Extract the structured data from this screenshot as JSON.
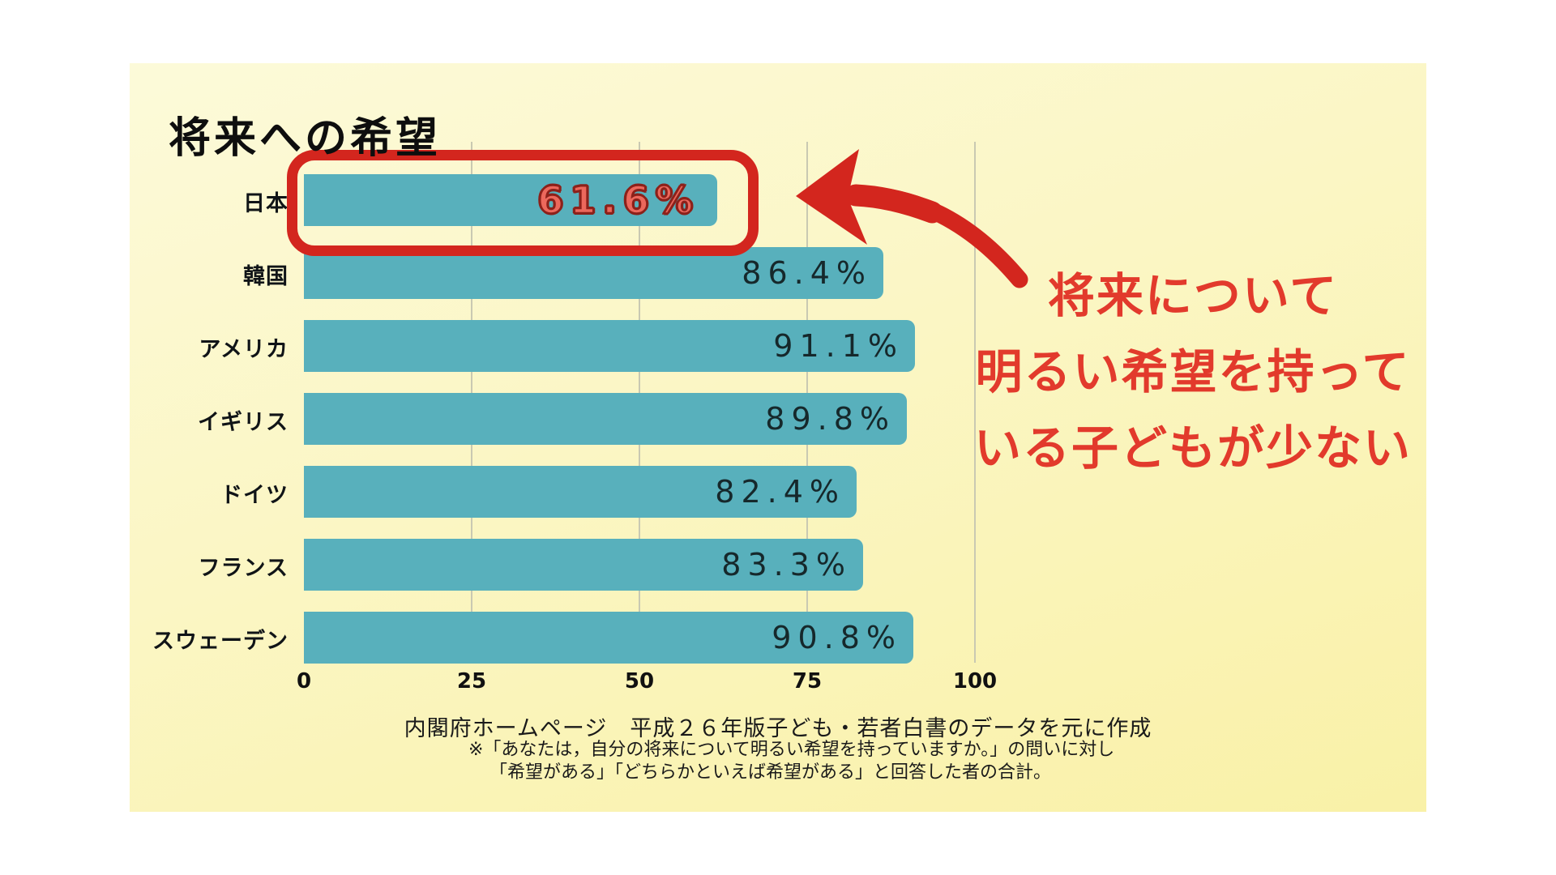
{
  "title": "将来への希望",
  "chart_data": {
    "type": "bar",
    "orientation": "horizontal",
    "categories": [
      "日本",
      "韓国",
      "アメリカ",
      "イギリス",
      "ドイツ",
      "フランス",
      "スウェーデン"
    ],
    "values": [
      61.6,
      86.4,
      91.1,
      89.8,
      82.4,
      83.3,
      90.8
    ],
    "value_labels": [
      "61.6%",
      "86.4%",
      "91.1%",
      "89.8%",
      "82.4%",
      "83.3%",
      "90.8%"
    ],
    "xticks": [
      0,
      25,
      50,
      75,
      100
    ],
    "xlim": [
      0,
      100
    ],
    "grid": true,
    "legend": false,
    "highlight_index": 0,
    "bar_color": "#58B0BC",
    "grid_color": "#C9C9B2",
    "xlabel": "",
    "ylabel": ""
  },
  "highlight": {
    "box_color": "#D3261E",
    "value_fill_color": "#EC685C",
    "value_outline_color": "#8C211A"
  },
  "annotation": {
    "lines": [
      "将来について",
      "明るい希望を持って",
      "いる子どもが少ない"
    ],
    "color": "#E23A2C",
    "arrow_icon": "red-curved-arrow"
  },
  "source": "内閣府ホームページ　平成２６年版子ども・若者白書のデータを元に作成",
  "notes": [
    "※「あなたは，自分の将来について明るい希望を持っていますか。」の問いに対し",
    "「希望がある」「どちらかといえば希望がある」と回答した者の合計。"
  ],
  "colors": {
    "page_background": "#FFFFFF",
    "panel_background_top": "#FCFAD9",
    "panel_background_bottom": "#F9F1A7",
    "text": "#101417"
  }
}
